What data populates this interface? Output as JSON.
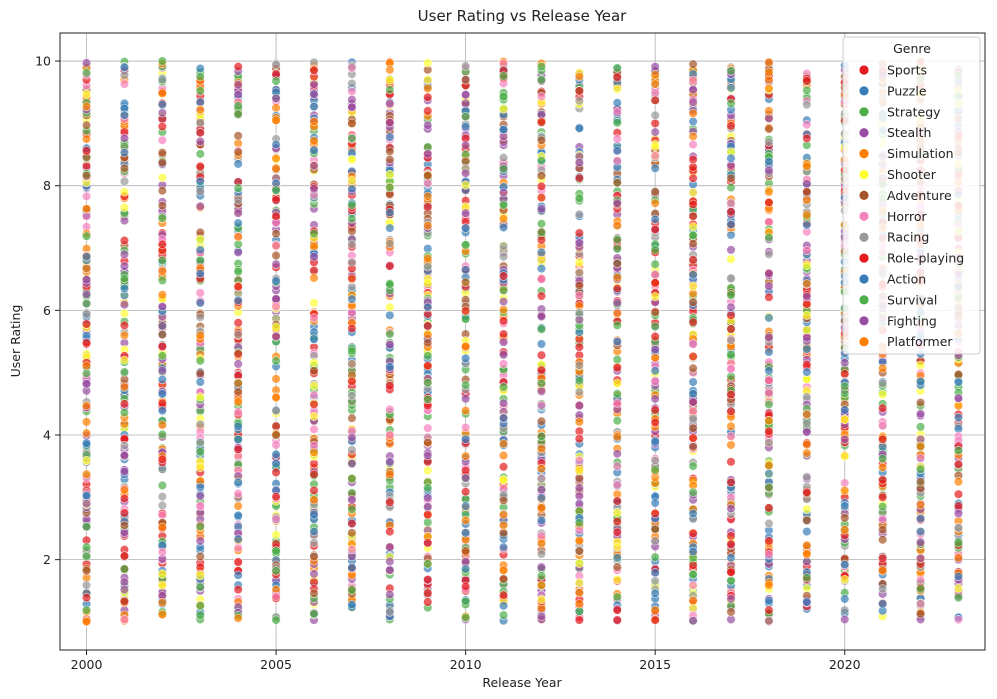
{
  "chart_data": {
    "type": "scatter",
    "title": "User Rating vs Release Year",
    "xlabel": "Release Year",
    "ylabel": "User Rating",
    "xlim": [
      1999.3,
      2023.7
    ],
    "ylim": [
      0.55,
      10.45
    ],
    "x_ticks": [
      2000,
      2005,
      2010,
      2015,
      2020
    ],
    "y_ticks": [
      2,
      4,
      6,
      8,
      10
    ],
    "grid": true,
    "legend_title": "Genre",
    "legend_position": "top-right",
    "marker_opacity": 0.7,
    "x_values": [
      2000,
      2001,
      2002,
      2003,
      2004,
      2005,
      2006,
      2007,
      2008,
      2009,
      2010,
      2011,
      2012,
      2013,
      2014,
      2015,
      2016,
      2017,
      2018,
      2019,
      2020,
      2021,
      2022,
      2023
    ],
    "y_range": [
      1.0,
      10.0
    ],
    "points_per_year_per_series": 12,
    "series": [
      {
        "name": "Sports",
        "color": "#e41a1c"
      },
      {
        "name": "Puzzle",
        "color": "#377eb8"
      },
      {
        "name": "Strategy",
        "color": "#4daf4a"
      },
      {
        "name": "Stealth",
        "color": "#984ea3"
      },
      {
        "name": "Simulation",
        "color": "#ff7f00"
      },
      {
        "name": "Shooter",
        "color": "#ffff33"
      },
      {
        "name": "Adventure",
        "color": "#a65628"
      },
      {
        "name": "Horror",
        "color": "#f781bf"
      },
      {
        "name": "Racing",
        "color": "#999999"
      },
      {
        "name": "Role-playing",
        "color": "#e41a1c"
      },
      {
        "name": "Action",
        "color": "#377eb8"
      },
      {
        "name": "Survival",
        "color": "#4daf4a"
      },
      {
        "name": "Fighting",
        "color": "#984ea3"
      },
      {
        "name": "Platformer",
        "color": "#ff7f00"
      }
    ]
  }
}
